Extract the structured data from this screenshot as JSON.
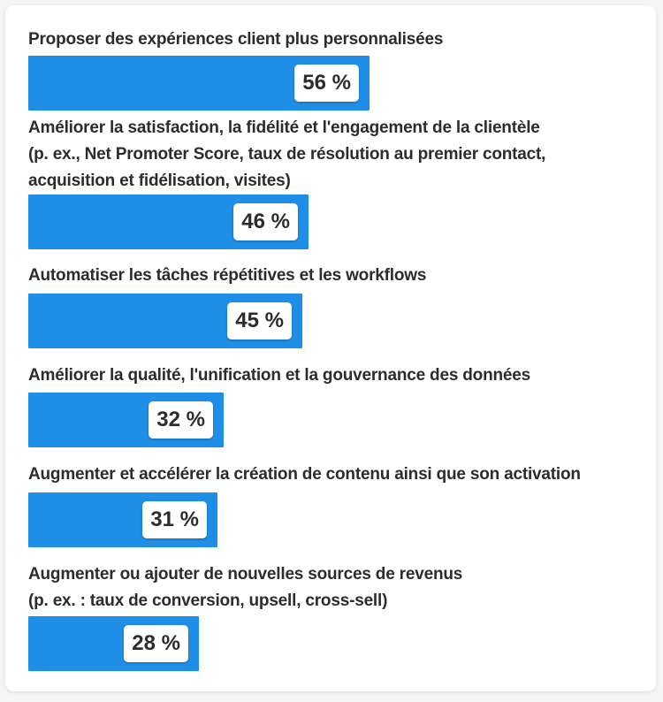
{
  "chart_data": {
    "type": "bar",
    "orientation": "horizontal",
    "unit": "%",
    "xlim": [
      0,
      100
    ],
    "bar_color": "#1e8ee6",
    "categories": [
      "Proposer des expériences client plus personnalisées",
      "Améliorer la satisfaction, la fidélité et l'engagement de la clientèle\n(p. ex., Net Promoter Score, taux de résolution au premier contact,\nacquisition et fidélisation, visites)",
      "Automatiser les tâches répétitives et les workflows",
      "Améliorer la qualité, l'unification et la gouvernance des données",
      "Augmenter et accélérer la création de contenu ainsi que son activation",
      "Augmenter ou ajouter de nouvelles sources de revenus\n(p. ex. : taux de conversion, upsell, cross-sell)"
    ],
    "values": [
      56,
      46,
      45,
      32,
      31,
      28
    ],
    "value_labels": [
      "56 %",
      "46 %",
      "45 %",
      "32 %",
      "31 %",
      "28 %"
    ]
  }
}
